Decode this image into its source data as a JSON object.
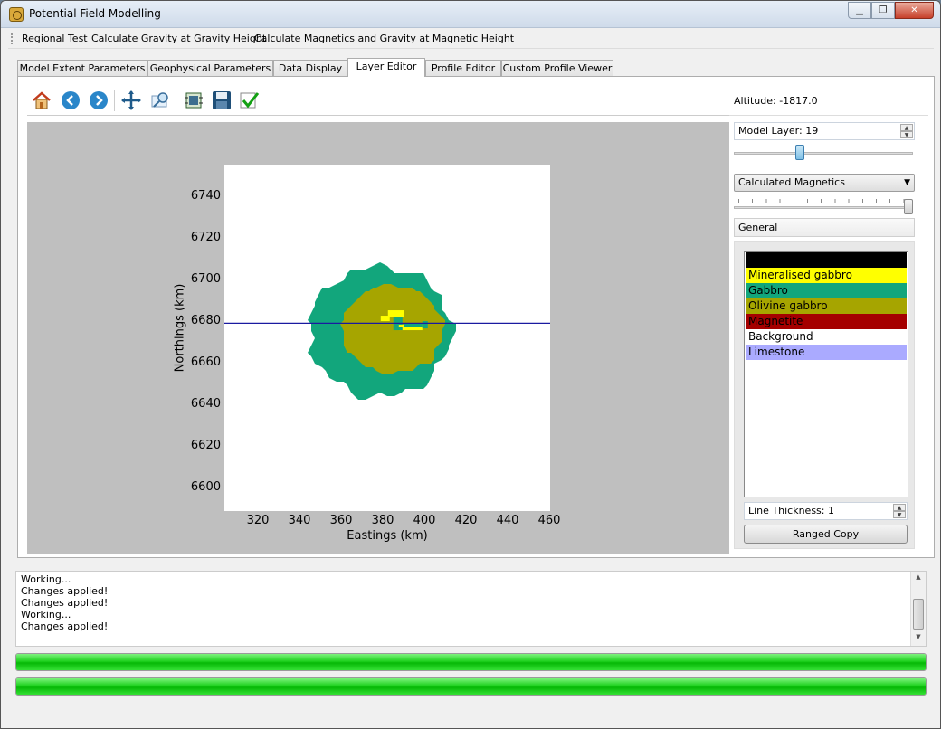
{
  "window": {
    "title": "Potential Field Modelling",
    "min_label": "▁",
    "max_label": "❐",
    "close_label": "✕"
  },
  "menu": [
    {
      "label": "Regional Test"
    },
    {
      "label": "Calculate Gravity at Gravity Height"
    },
    {
      "label": "Calculate Magnetics and Gravity at Magnetic Height"
    }
  ],
  "tabs": [
    {
      "label": "Model Extent Parameters"
    },
    {
      "label": "Geophysical Parameters"
    },
    {
      "label": "Data Display"
    },
    {
      "label": "Layer Editor",
      "active": true
    },
    {
      "label": "Profile Editor"
    },
    {
      "label": "Custom Profile Viewer"
    }
  ],
  "toolbar": {
    "icons": [
      "home-icon",
      "back-arrow-icon",
      "forward-arrow-icon",
      "pan-icon",
      "zoom-rect-icon",
      "configure-subplots-icon",
      "save-icon",
      "apply-check-icon"
    ]
  },
  "chart_data": {
    "type": "heatmap",
    "title": "",
    "xlabel": "Eastings (km)",
    "ylabel": "Northings (km)",
    "xlim": [
      305,
      460
    ],
    "ylim": [
      6589,
      6755
    ],
    "xticks": [
      "320",
      "340",
      "360",
      "380",
      "400",
      "420",
      "440",
      "460"
    ],
    "yticks": [
      "6740",
      "6720",
      "6700",
      "6680",
      "6660",
      "6640",
      "6620",
      "6600"
    ],
    "profile_line_northing": 6679,
    "bodies": [
      {
        "layer": "Gabbro",
        "color": "#12a67c",
        "shape": "irregular disc",
        "center": [
          379,
          6675
        ],
        "radius_east": 34,
        "radius_north": 31
      },
      {
        "layer": "Olivine gabbro",
        "color": "#a6a500",
        "shape": "irregular disc",
        "center": [
          385,
          6676
        ],
        "radius_east": 24,
        "radius_north": 21
      },
      {
        "layer": "Mineralised gabbro",
        "color": "#ffff00",
        "shape": "small patches",
        "center": [
          388,
          6680
        ]
      },
      {
        "layer": "Gabbro",
        "color": "#12a67c",
        "shape": "small patches",
        "center": [
          392,
          6678
        ]
      }
    ]
  },
  "side": {
    "altitude": "Altitude:  -1817.0",
    "model_layer": "Model Layer: 19",
    "layer_slider_fraction": 0.36,
    "display_select": "Calculated Magnetics",
    "display_slider_fraction": 1.0,
    "general_label": "General",
    "layers": [
      {
        "name": "",
        "color": "#000000",
        "text": "#000000"
      },
      {
        "name": "Mineralised gabbro",
        "color": "#ffff00",
        "text": "#000000"
      },
      {
        "name": "Gabbro",
        "color": "#12a67c",
        "text": "#000000"
      },
      {
        "name": "Olivine gabbro",
        "color": "#a6a500",
        "text": "#000000"
      },
      {
        "name": "Magnetite",
        "color": "#a50000",
        "text": "#000000"
      },
      {
        "name": "Background",
        "color": "#ffffff",
        "text": "#000000"
      },
      {
        "name": "Limestone",
        "color": "#aaaaff",
        "text": "#000000"
      }
    ],
    "line_thickness": "Line Thickness: 1",
    "ranged_copy": "Ranged Copy"
  },
  "log": [
    "Working...",
    "Changes applied!",
    "Changes applied!",
    "Working...",
    "Changes applied!"
  ],
  "progress": [
    {
      "value": 1.0
    },
    {
      "value": 1.0
    }
  ]
}
